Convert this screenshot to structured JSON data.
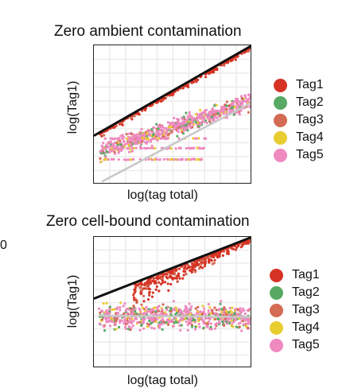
{
  "left_fragment": "0",
  "chart_data": [
    {
      "type": "scatter",
      "title": "Zero ambient contamination",
      "xlabel": "log(tag total)",
      "ylabel": "log(Tag1)",
      "grid": true,
      "xlim": [
        0,
        10
      ],
      "ylim": [
        0,
        10
      ],
      "legend_position": "right",
      "series": [
        {
          "name": "Tag1",
          "color": "#d63324"
        },
        {
          "name": "Tag2",
          "color": "#58a964"
        },
        {
          "name": "Tag3",
          "color": "#d46b55"
        },
        {
          "name": "Tag4",
          "color": "#e8cd31"
        },
        {
          "name": "Tag5",
          "color": "#ee8ac0"
        }
      ],
      "lines": [
        {
          "style": "identity",
          "color": "#111111",
          "from": [
            0,
            3.5
          ],
          "to": [
            10,
            10
          ]
        },
        {
          "style": "trend",
          "color": "#c8c8c8",
          "from": [
            0.5,
            0.2
          ],
          "to": [
            10,
            5.9
          ]
        }
      ]
    },
    {
      "type": "scatter",
      "title": "Zero cell-bound contamination",
      "xlabel": "log(tag total)",
      "ylabel": "log(Tag1)",
      "grid": true,
      "xlim": [
        0,
        10
      ],
      "ylim": [
        0,
        10
      ],
      "legend_position": "right",
      "series": [
        {
          "name": "Tag1",
          "color": "#d63324"
        },
        {
          "name": "Tag2",
          "color": "#58a964"
        },
        {
          "name": "Tag3",
          "color": "#d46b55"
        },
        {
          "name": "Tag4",
          "color": "#e8cd31"
        },
        {
          "name": "Tag5",
          "color": "#ee8ac0"
        }
      ],
      "lines": [
        {
          "style": "identity",
          "color": "#111111",
          "from": [
            0,
            5.3
          ],
          "to": [
            10,
            10
          ]
        },
        {
          "style": "trend",
          "color": "#c8c8c8",
          "from": [
            0.3,
            4.0
          ],
          "to": [
            10,
            3.9
          ]
        }
      ]
    }
  ]
}
